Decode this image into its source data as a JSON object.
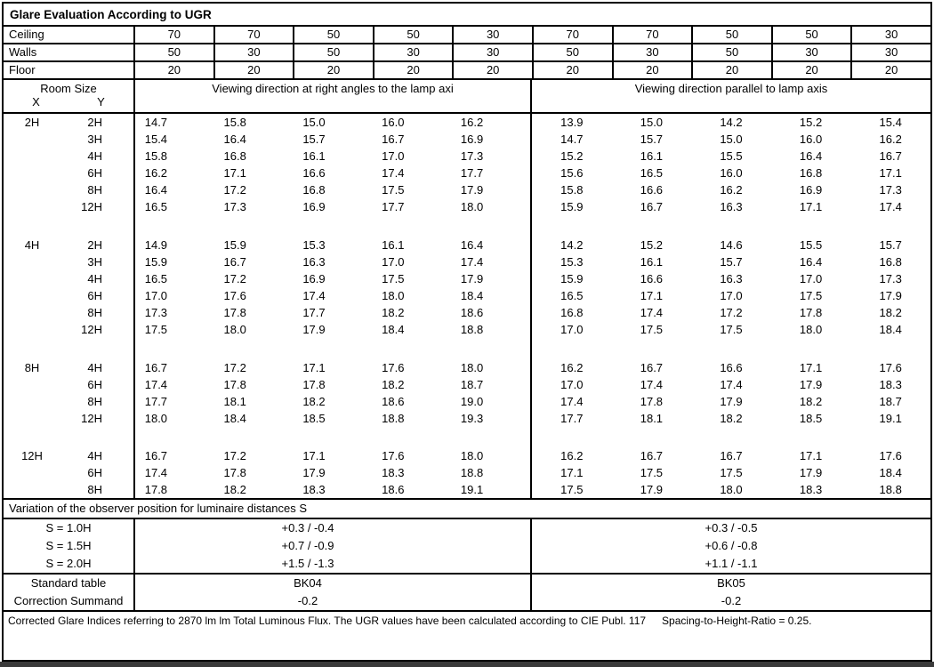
{
  "title": "Glare Evaluation According to UGR",
  "surfaces": [
    {
      "label": "Ceiling",
      "values": [
        "70",
        "70",
        "50",
        "50",
        "30",
        "70",
        "70",
        "50",
        "50",
        "30"
      ]
    },
    {
      "label": "Walls",
      "values": [
        "50",
        "30",
        "50",
        "30",
        "30",
        "50",
        "30",
        "50",
        "30",
        "30"
      ]
    },
    {
      "label": "Floor",
      "values": [
        "20",
        "20",
        "20",
        "20",
        "20",
        "20",
        "20",
        "20",
        "20",
        "20"
      ]
    }
  ],
  "header": {
    "room_size_label": "Room Size",
    "x_label": "X",
    "y_label": "Y",
    "left_group_title": "Viewing direction at right angles to the lamp axi",
    "right_group_title": "Viewing direction parallel to lamp axis"
  },
  "ugr_groups": [
    {
      "x": "2H",
      "rows": [
        {
          "y": "2H",
          "left": [
            "14.7",
            "15.8",
            "15.0",
            "16.0",
            "16.2"
          ],
          "right": [
            "13.9",
            "15.0",
            "14.2",
            "15.2",
            "15.4"
          ]
        },
        {
          "y": "3H",
          "left": [
            "15.4",
            "16.4",
            "15.7",
            "16.7",
            "16.9"
          ],
          "right": [
            "14.7",
            "15.7",
            "15.0",
            "16.0",
            "16.2"
          ]
        },
        {
          "y": "4H",
          "left": [
            "15.8",
            "16.8",
            "16.1",
            "17.0",
            "17.3"
          ],
          "right": [
            "15.2",
            "16.1",
            "15.5",
            "16.4",
            "16.7"
          ]
        },
        {
          "y": "6H",
          "left": [
            "16.2",
            "17.1",
            "16.6",
            "17.4",
            "17.7"
          ],
          "right": [
            "15.6",
            "16.5",
            "16.0",
            "16.8",
            "17.1"
          ]
        },
        {
          "y": "8H",
          "left": [
            "16.4",
            "17.2",
            "16.8",
            "17.5",
            "17.9"
          ],
          "right": [
            "15.8",
            "16.6",
            "16.2",
            "16.9",
            "17.3"
          ]
        },
        {
          "y": "12H",
          "left": [
            "16.5",
            "17.3",
            "16.9",
            "17.7",
            "18.0"
          ],
          "right": [
            "15.9",
            "16.7",
            "16.3",
            "17.1",
            "17.4"
          ]
        }
      ]
    },
    {
      "x": "4H",
      "rows": [
        {
          "y": "2H",
          "left": [
            "14.9",
            "15.9",
            "15.3",
            "16.1",
            "16.4"
          ],
          "right": [
            "14.2",
            "15.2",
            "14.6",
            "15.5",
            "15.7"
          ]
        },
        {
          "y": "3H",
          "left": [
            "15.9",
            "16.7",
            "16.3",
            "17.0",
            "17.4"
          ],
          "right": [
            "15.3",
            "16.1",
            "15.7",
            "16.4",
            "16.8"
          ]
        },
        {
          "y": "4H",
          "left": [
            "16.5",
            "17.2",
            "16.9",
            "17.5",
            "17.9"
          ],
          "right": [
            "15.9",
            "16.6",
            "16.3",
            "17.0",
            "17.3"
          ]
        },
        {
          "y": "6H",
          "left": [
            "17.0",
            "17.6",
            "17.4",
            "18.0",
            "18.4"
          ],
          "right": [
            "16.5",
            "17.1",
            "17.0",
            "17.5",
            "17.9"
          ]
        },
        {
          "y": "8H",
          "left": [
            "17.3",
            "17.8",
            "17.7",
            "18.2",
            "18.6"
          ],
          "right": [
            "16.8",
            "17.4",
            "17.2",
            "17.8",
            "18.2"
          ]
        },
        {
          "y": "12H",
          "left": [
            "17.5",
            "18.0",
            "17.9",
            "18.4",
            "18.8"
          ],
          "right": [
            "17.0",
            "17.5",
            "17.5",
            "18.0",
            "18.4"
          ]
        }
      ]
    },
    {
      "x": "8H",
      "rows": [
        {
          "y": "4H",
          "left": [
            "16.7",
            "17.2",
            "17.1",
            "17.6",
            "18.0"
          ],
          "right": [
            "16.2",
            "16.7",
            "16.6",
            "17.1",
            "17.6"
          ]
        },
        {
          "y": "6H",
          "left": [
            "17.4",
            "17.8",
            "17.8",
            "18.2",
            "18.7"
          ],
          "right": [
            "17.0",
            "17.4",
            "17.4",
            "17.9",
            "18.3"
          ]
        },
        {
          "y": "8H",
          "left": [
            "17.7",
            "18.1",
            "18.2",
            "18.6",
            "19.0"
          ],
          "right": [
            "17.4",
            "17.8",
            "17.9",
            "18.2",
            "18.7"
          ]
        },
        {
          "y": "12H",
          "left": [
            "18.0",
            "18.4",
            "18.5",
            "18.8",
            "19.3"
          ],
          "right": [
            "17.7",
            "18.1",
            "18.2",
            "18.5",
            "19.1"
          ]
        }
      ]
    },
    {
      "x": "12H",
      "rows": [
        {
          "y": "4H",
          "left": [
            "16.7",
            "17.2",
            "17.1",
            "17.6",
            "18.0"
          ],
          "right": [
            "16.2",
            "16.7",
            "16.7",
            "17.1",
            "17.6"
          ]
        },
        {
          "y": "6H",
          "left": [
            "17.4",
            "17.8",
            "17.9",
            "18.3",
            "18.8"
          ],
          "right": [
            "17.1",
            "17.5",
            "17.5",
            "17.9",
            "18.4"
          ]
        },
        {
          "y": "8H",
          "left": [
            "17.8",
            "18.2",
            "18.3",
            "18.6",
            "19.1"
          ],
          "right": [
            "17.5",
            "17.9",
            "18.0",
            "18.3",
            "18.8"
          ]
        }
      ]
    }
  ],
  "variation_label": "Variation of the observer position for luminaire distances S",
  "variation_rows": [
    {
      "label": "S = 1.0H",
      "left": "+0.3 / -0.4",
      "right": "+0.3 / -0.5"
    },
    {
      "label": "S = 1.5H",
      "left": "+0.7 / -0.9",
      "right": "+0.6 / -0.8"
    },
    {
      "label": "S = 2.0H",
      "left": "+1.5 / -1.3",
      "right": "+1.1 / -1.1"
    }
  ],
  "summary_rows": [
    {
      "label": "Standard table",
      "left": "BK04",
      "right": "BK05"
    },
    {
      "label": "Correction Summand",
      "left": "-0.2",
      "right": "-0.2"
    }
  ],
  "footer": {
    "text": "Corrected Glare Indices referring to 2870 lm lm Total Luminous Flux. The UGR values have been calculated according to CIE Publ. 117",
    "ratio": "Spacing-to-Height-Ratio = 0.25."
  }
}
